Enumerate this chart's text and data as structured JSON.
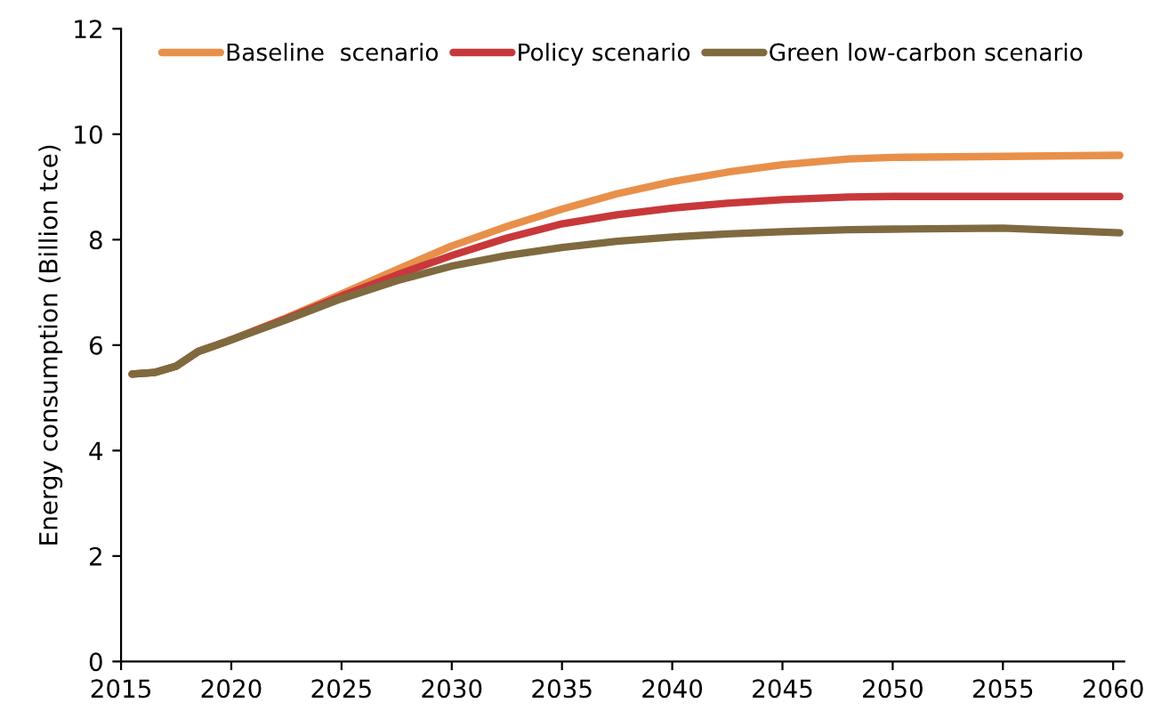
{
  "chart_data": {
    "type": "line",
    "ylabel": "Energy consumption (Billion tce)",
    "xlim": [
      2015,
      2060.5
    ],
    "xticks": [
      2015,
      2020,
      2025,
      2030,
      2035,
      2040,
      2045,
      2050,
      2055,
      2060
    ],
    "ylim": [
      0,
      12
    ],
    "yticks": [
      0,
      2,
      4,
      6,
      8,
      10,
      12
    ],
    "grid": false,
    "legend": "top",
    "marker": "none",
    "line_style": "solid",
    "x": [
      2015.5,
      2016.5,
      2017.5,
      2018.5,
      2020,
      2022.5,
      2025,
      2027.5,
      2030,
      2032.5,
      2035,
      2037.5,
      2040,
      2042.5,
      2045,
      2048,
      2050,
      2055,
      2060.3
    ],
    "series": [
      {
        "name": "Baseline  scenario",
        "color": "#e8904a",
        "values": [
          5.45,
          5.48,
          5.6,
          5.88,
          6.1,
          6.52,
          6.97,
          7.43,
          7.88,
          8.25,
          8.58,
          8.87,
          9.1,
          9.28,
          9.42,
          9.53,
          9.56,
          9.58,
          9.6
        ]
      },
      {
        "name": "Policy scenario",
        "color": "#c8383a",
        "values": [
          5.45,
          5.48,
          5.6,
          5.88,
          6.1,
          6.5,
          6.93,
          7.33,
          7.7,
          8.03,
          8.3,
          8.47,
          8.6,
          8.69,
          8.76,
          8.81,
          8.82,
          8.82,
          8.82
        ]
      },
      {
        "name": "Green low-carbon scenario",
        "color": "#7f6a3f",
        "values": [
          5.45,
          5.48,
          5.6,
          5.88,
          6.1,
          6.48,
          6.88,
          7.22,
          7.5,
          7.7,
          7.85,
          7.97,
          8.05,
          8.11,
          8.15,
          8.19,
          8.2,
          8.22,
          8.13
        ]
      }
    ]
  }
}
